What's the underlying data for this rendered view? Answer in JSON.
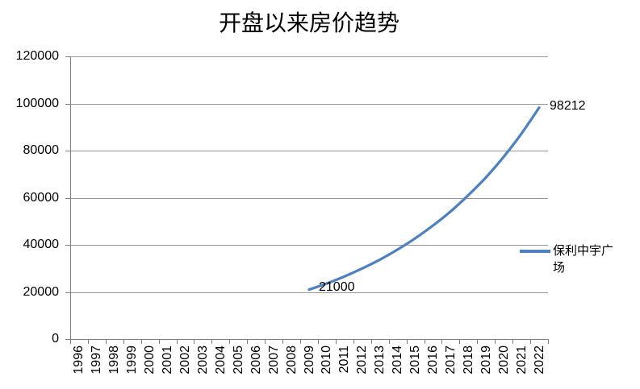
{
  "chart_data": {
    "type": "line",
    "title": "开盘以来房价趋势",
    "categories": [
      "1996",
      "1997",
      "1998",
      "1999",
      "2000",
      "2001",
      "2002",
      "2003",
      "2004",
      "2005",
      "2006",
      "2007",
      "2008",
      "2009",
      "2010",
      "2011",
      "2012",
      "2013",
      "2014",
      "2015",
      "2016",
      "2017",
      "2018",
      "2019",
      "2020",
      "2021",
      "2022"
    ],
    "y_axis": {
      "min": 0,
      "max": 120000,
      "step": 20000,
      "tick_labels": [
        "0",
        "20000",
        "40000",
        "60000",
        "80000",
        "100000",
        "120000"
      ]
    },
    "grid": {
      "horizontal": true,
      "vertical": false
    },
    "series": [
      {
        "name": "保利中宇广场",
        "color": "#4F81BD",
        "points": [
          {
            "year": "2009",
            "value": 21000
          },
          {
            "year": "2010",
            "value": 23600
          },
          {
            "year": "2011",
            "value": 26600
          },
          {
            "year": "2012",
            "value": 30000
          },
          {
            "year": "2013",
            "value": 33700
          },
          {
            "year": "2014",
            "value": 38000
          },
          {
            "year": "2015",
            "value": 42800
          },
          {
            "year": "2016",
            "value": 48200
          },
          {
            "year": "2017",
            "value": 54200
          },
          {
            "year": "2018",
            "value": 61100
          },
          {
            "year": "2019",
            "value": 68700
          },
          {
            "year": "2020",
            "value": 77400
          },
          {
            "year": "2021",
            "value": 87200
          },
          {
            "year": "2022",
            "value": 98212
          }
        ]
      }
    ],
    "annotations": [
      {
        "text": "21000",
        "anchor": "series-start"
      },
      {
        "text": "98212",
        "anchor": "series-end"
      }
    ],
    "legend_position": "right",
    "colors": {
      "series_line": "#4F81BD",
      "gridline": "#969696",
      "axis": "#808080",
      "text": "#000000"
    }
  }
}
